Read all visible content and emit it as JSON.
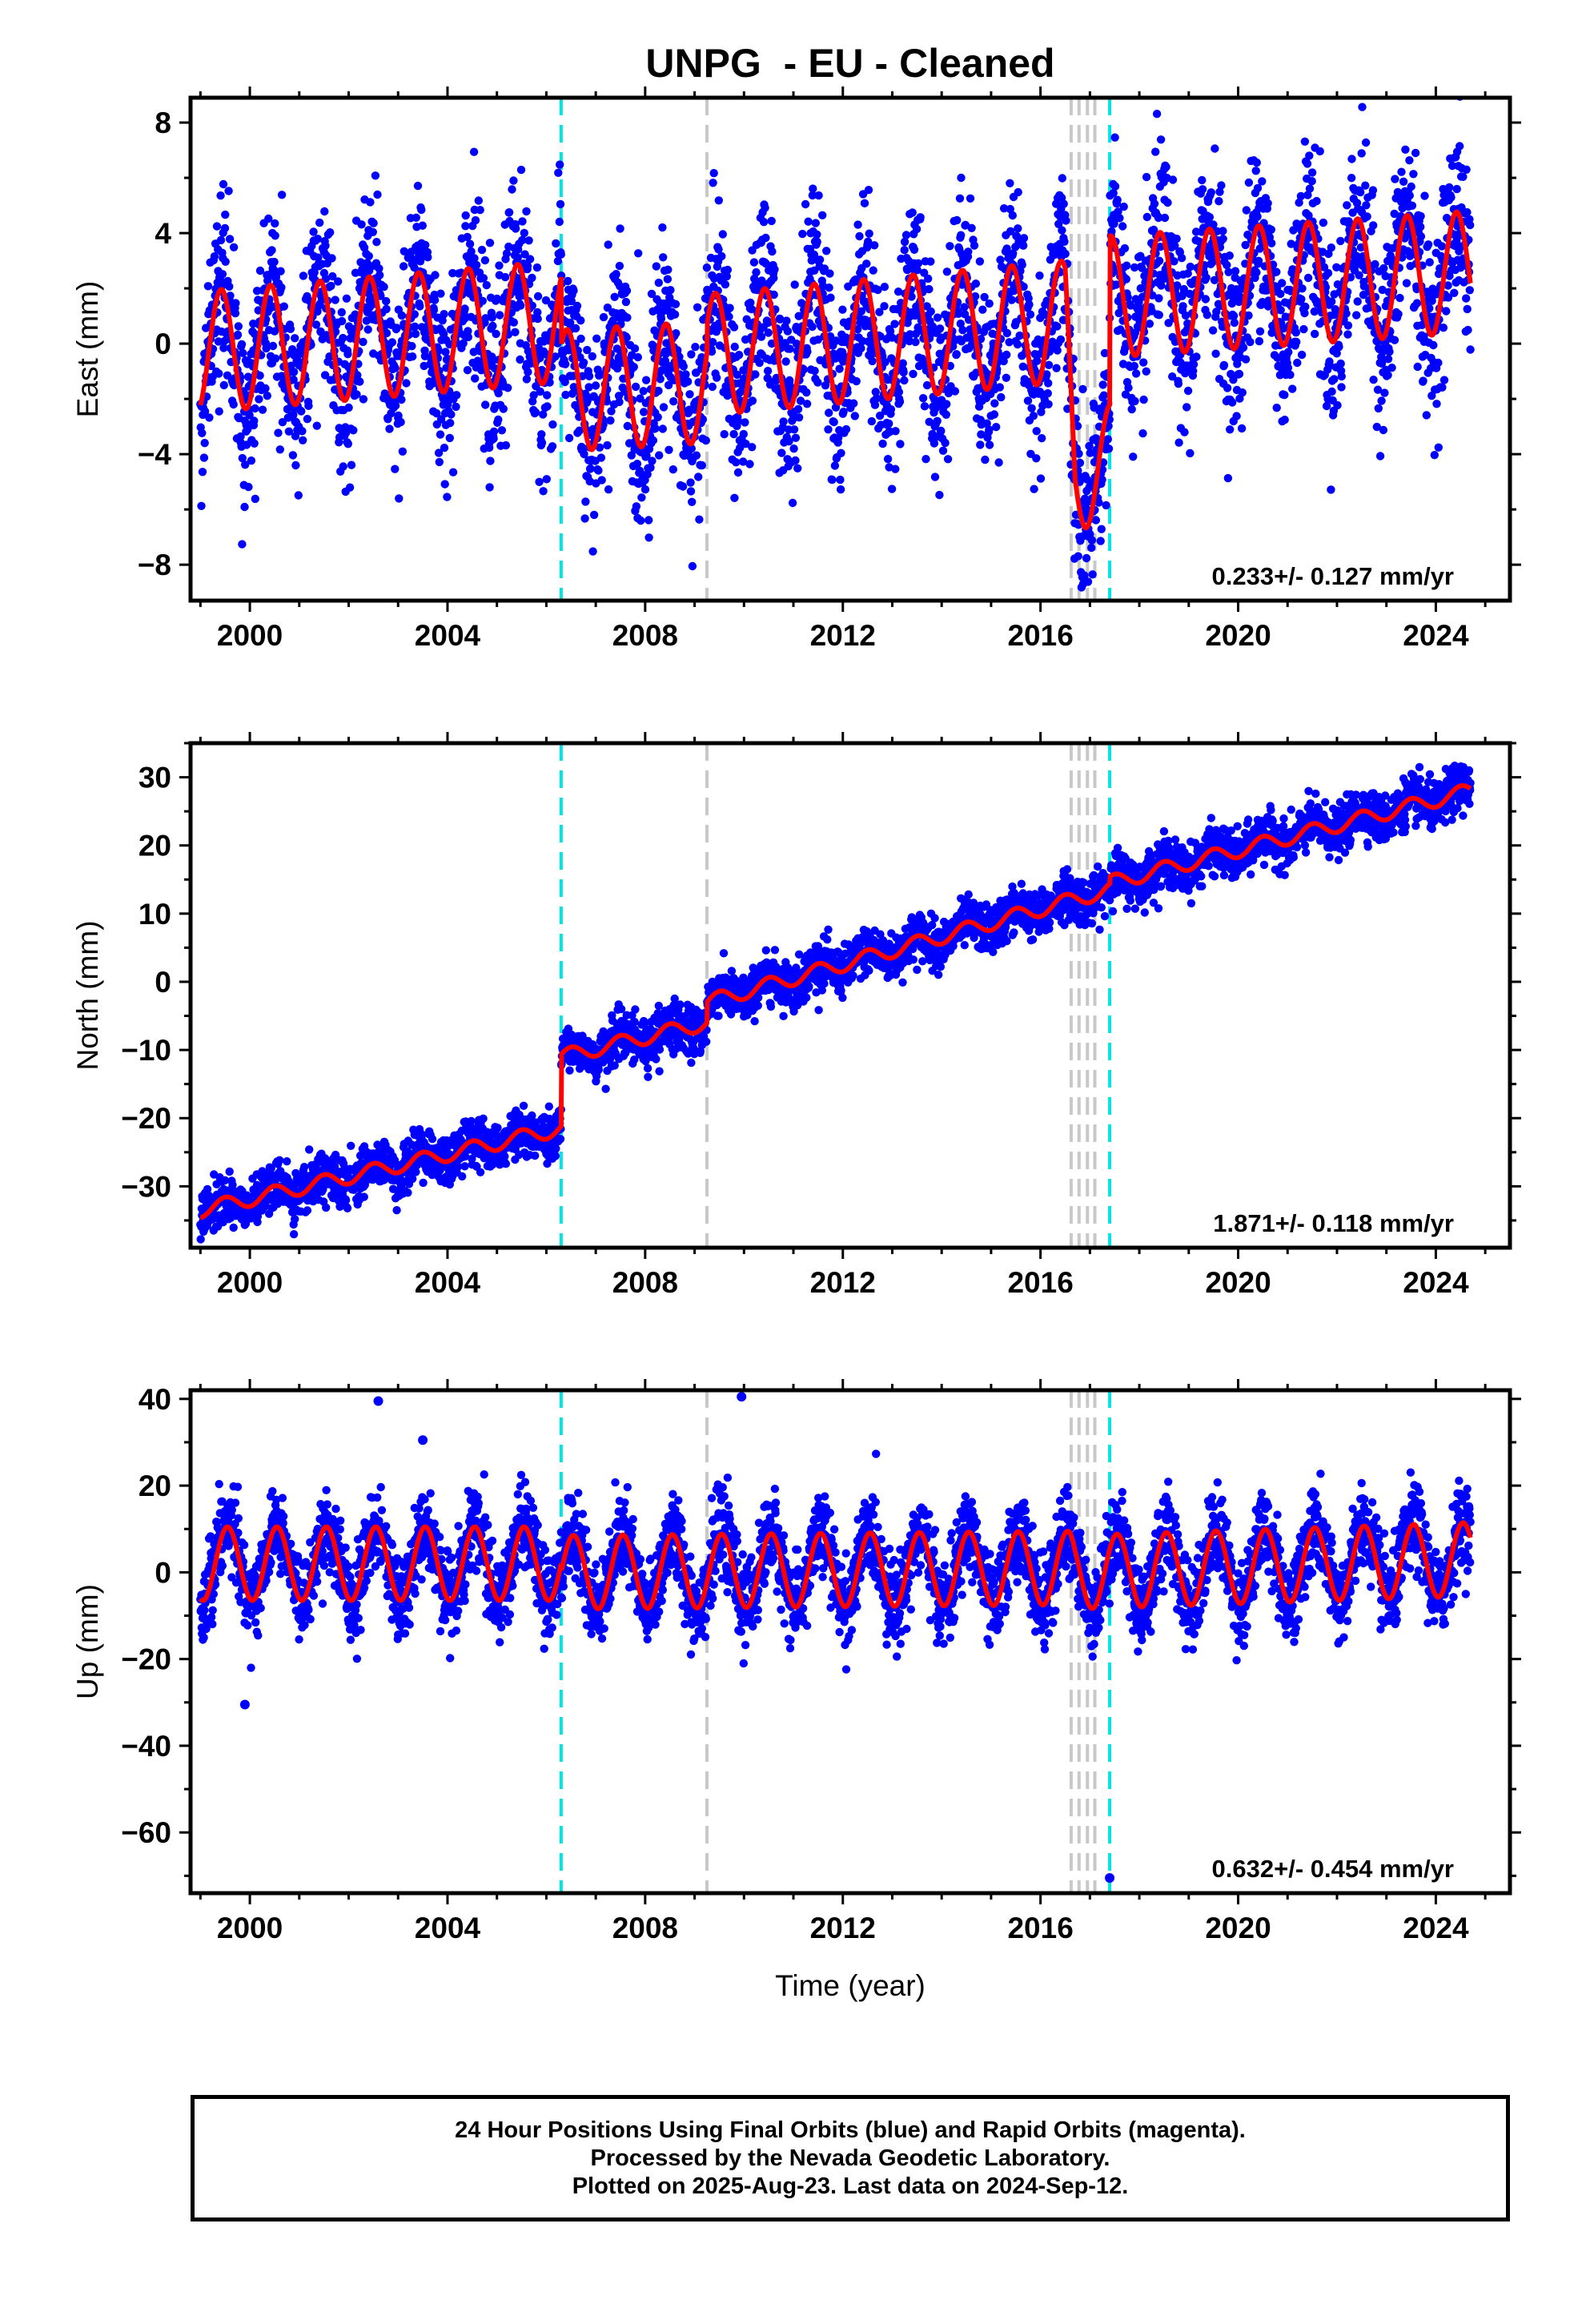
{
  "title": "UNPG  - EU - Cleaned",
  "xlabel": "Time (year)",
  "footer": {
    "line1": "24 Hour Positions Using Final Orbits (blue) and Rapid Orbits (magenta).",
    "line2": "Processed by the Nevada Geodetic Laboratory.",
    "line3": "Plotted on 2025-Aug-23. Last data on 2024-Sep-12."
  },
  "colors": {
    "data": "#0000ff",
    "model": "#ff0000",
    "equipment_change": "#00e5e5",
    "other_event": "#c8c8c8"
  },
  "chart_data": [
    {
      "type": "scatter",
      "component": "east",
      "ylabel": "East (mm)",
      "xlim": [
        1998.8,
        2025.5
      ],
      "ylim": [
        -9.3,
        8.9
      ],
      "xticks": [
        2000,
        2004,
        2008,
        2012,
        2016,
        2020,
        2024
      ],
      "yticks": [
        -8,
        -4,
        0,
        4,
        8
      ],
      "rate_label": "0.233+/- 0.127 mm/yr",
      "data_range": [
        1999.0,
        2024.7
      ],
      "equipment_changes": [
        2006.3,
        2017.4
      ],
      "other_events": [
        2009.25,
        2016.62,
        2016.78,
        2016.95,
        2017.1
      ],
      "seasonal_amplitude": 2.2,
      "seasonal_peak_phase": 0.42,
      "noise_sd": 1.6,
      "trend_knots": [
        [
          1999.0,
          -0.3
        ],
        [
          2006.29,
          0.8
        ],
        [
          2006.3,
          -1.7
        ],
        [
          2009.24,
          -1.4
        ],
        [
          2009.25,
          -0.4
        ],
        [
          2016.5,
          0.8
        ],
        [
          2016.7,
          -4.5
        ],
        [
          2017.39,
          -4.4
        ],
        [
          2017.4,
          1.7
        ],
        [
          2024.7,
          2.6
        ]
      ]
    },
    {
      "type": "scatter",
      "component": "north",
      "ylabel": "North (mm)",
      "xlim": [
        1998.8,
        2025.5
      ],
      "ylim": [
        -39,
        35
      ],
      "xticks": [
        2000,
        2004,
        2008,
        2012,
        2016,
        2020,
        2024
      ],
      "yticks": [
        -30,
        -20,
        -10,
        0,
        10,
        20,
        30
      ],
      "rate_label": "1.871+/- 0.118 mm/yr",
      "data_range": [
        1999.0,
        2024.7
      ],
      "equipment_changes": [
        2006.3,
        2017.4
      ],
      "other_events": [
        2009.25,
        2016.62,
        2016.78,
        2016.95,
        2017.1
      ],
      "seasonal_amplitude": 1.1,
      "seasonal_peak_phase": 0.5,
      "noise_sd": 1.7,
      "trend_knots": [
        [
          1999.0,
          -33.5
        ],
        [
          2006.29,
          -21.5
        ],
        [
          2006.3,
          -11.0
        ],
        [
          2009.24,
          -6.0
        ],
        [
          2009.25,
          -3.0
        ],
        [
          2017.39,
          13.5
        ],
        [
          2017.4,
          14.5
        ],
        [
          2024.7,
          28.0
        ]
      ]
    },
    {
      "type": "scatter",
      "component": "up",
      "ylabel": "Up (mm)",
      "xlim": [
        1998.8,
        2025.5
      ],
      "ylim": [
        -74,
        42
      ],
      "xticks": [
        2000,
        2004,
        2008,
        2012,
        2016,
        2020,
        2024
      ],
      "yticks": [
        -60,
        -40,
        -20,
        0,
        20,
        40
      ],
      "rate_label": "0.632+/- 0.454 mm/yr",
      "data_range": [
        1999.0,
        2024.7
      ],
      "equipment_changes": [
        2006.3,
        2017.4
      ],
      "other_events": [
        2009.25,
        2016.62,
        2016.78,
        2016.95,
        2017.1
      ],
      "seasonal_amplitude": 8.5,
      "seasonal_peak_phase": 0.55,
      "noise_sd": 4.8,
      "trend_knots": [
        [
          1999.0,
          2.0
        ],
        [
          2006.29,
          2.0
        ],
        [
          2006.3,
          0.0
        ],
        [
          2016.6,
          1.0
        ],
        [
          2016.7,
          0.0
        ],
        [
          2024.7,
          3.0
        ]
      ],
      "outliers": [
        [
          2002.6,
          39.5
        ],
        [
          2003.5,
          30.5
        ],
        [
          2009.95,
          40.5
        ],
        [
          1999.9,
          -30.5
        ],
        [
          2017.4,
          -70.5
        ]
      ]
    }
  ]
}
